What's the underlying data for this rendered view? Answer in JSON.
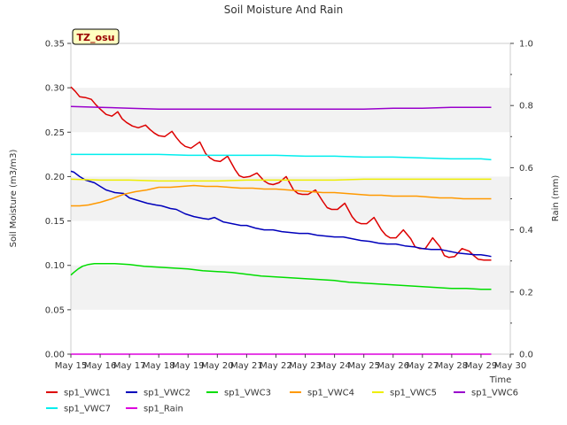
{
  "chart_data": {
    "type": "line",
    "title": "Soil Moisture And Rain",
    "xlabel": "Time",
    "ylabel": "Soil Moisture (m3/m3)",
    "y2label": "Rain (mm)",
    "badge": "TZ_osu",
    "x_ticks": [
      "May 15",
      "May 16",
      "May 17",
      "May 18",
      "May 19",
      "May 20",
      "May 21",
      "May 22",
      "May 23",
      "May 24",
      "May 25",
      "May 26",
      "May 27",
      "May 28",
      "May 29",
      "May 30"
    ],
    "xlim": [
      0,
      15
    ],
    "ylim": [
      0,
      0.35
    ],
    "y_ticks": [
      "0.00",
      "0.05",
      "0.10",
      "0.15",
      "0.20",
      "0.25",
      "0.30",
      "0.35"
    ],
    "y2lim": [
      0,
      1.0
    ],
    "y2_ticks": [
      "0.0",
      "0.2",
      "0.4",
      "0.6",
      "0.8",
      "1.0"
    ],
    "grid": "horizontal bands",
    "legend_position": "bottom",
    "x_unit": "days since May 15",
    "series": [
      {
        "name": "sp1_VWC1",
        "color": "#dd0000",
        "axis": "left",
        "x": [
          0.0,
          0.15,
          0.3,
          0.5,
          0.7,
          0.85,
          1.0,
          1.2,
          1.4,
          1.6,
          1.75,
          1.9,
          2.1,
          2.3,
          2.55,
          2.7,
          2.85,
          3.0,
          3.2,
          3.45,
          3.6,
          3.75,
          3.9,
          4.1,
          4.4,
          4.6,
          4.75,
          4.9,
          5.1,
          5.35,
          5.6,
          5.75,
          5.9,
          6.1,
          6.35,
          6.6,
          6.75,
          6.9,
          7.1,
          7.35,
          7.6,
          7.75,
          7.9,
          8.1,
          8.35,
          8.6,
          8.75,
          8.9,
          9.1,
          9.35,
          9.6,
          9.75,
          9.9,
          10.1,
          10.35,
          10.6,
          10.75,
          10.9,
          11.1,
          11.35,
          11.6,
          11.75,
          11.9,
          12.1,
          12.35,
          12.6,
          12.75,
          12.9,
          13.1,
          13.35,
          13.6,
          13.75,
          13.9,
          14.1,
          14.35
        ],
        "y": [
          0.301,
          0.296,
          0.29,
          0.289,
          0.287,
          0.281,
          0.276,
          0.27,
          0.268,
          0.273,
          0.265,
          0.261,
          0.257,
          0.255,
          0.258,
          0.253,
          0.249,
          0.246,
          0.245,
          0.251,
          0.244,
          0.238,
          0.234,
          0.232,
          0.239,
          0.226,
          0.221,
          0.218,
          0.217,
          0.223,
          0.208,
          0.201,
          0.199,
          0.2,
          0.204,
          0.195,
          0.192,
          0.191,
          0.193,
          0.2,
          0.185,
          0.181,
          0.18,
          0.18,
          0.185,
          0.172,
          0.165,
          0.163,
          0.163,
          0.17,
          0.155,
          0.149,
          0.147,
          0.147,
          0.154,
          0.14,
          0.134,
          0.131,
          0.131,
          0.14,
          0.13,
          0.121,
          0.119,
          0.119,
          0.131,
          0.121,
          0.111,
          0.109,
          0.11,
          0.119,
          0.116,
          0.111,
          0.107,
          0.106,
          0.106
        ]
      },
      {
        "name": "sp1_VWC2",
        "color": "#0000bb",
        "axis": "left",
        "x": [
          0.0,
          0.1,
          0.3,
          0.5,
          0.8,
          1.0,
          1.2,
          1.5,
          1.8,
          2.0,
          2.3,
          2.6,
          2.9,
          3.1,
          3.4,
          3.6,
          3.9,
          4.2,
          4.5,
          4.7,
          4.9,
          5.2,
          5.5,
          5.8,
          6.0,
          6.3,
          6.6,
          6.9,
          7.2,
          7.5,
          7.8,
          8.1,
          8.4,
          8.7,
          9.0,
          9.3,
          9.6,
          9.9,
          10.2,
          10.5,
          10.8,
          11.1,
          11.4,
          11.7,
          12.0,
          12.3,
          12.6,
          12.9,
          13.2,
          13.5,
          13.8,
          14.0,
          14.2,
          14.35
        ],
        "y": [
          0.206,
          0.205,
          0.2,
          0.196,
          0.193,
          0.189,
          0.185,
          0.182,
          0.181,
          0.176,
          0.173,
          0.17,
          0.168,
          0.167,
          0.164,
          0.163,
          0.158,
          0.155,
          0.153,
          0.152,
          0.154,
          0.149,
          0.147,
          0.145,
          0.145,
          0.142,
          0.14,
          0.14,
          0.138,
          0.137,
          0.136,
          0.136,
          0.134,
          0.133,
          0.132,
          0.132,
          0.13,
          0.128,
          0.127,
          0.125,
          0.124,
          0.124,
          0.122,
          0.121,
          0.119,
          0.118,
          0.118,
          0.116,
          0.114,
          0.113,
          0.112,
          0.112,
          0.111,
          0.11
        ]
      },
      {
        "name": "sp1_VWC3",
        "color": "#00dd00",
        "axis": "left",
        "x": [
          0.0,
          0.1,
          0.25,
          0.4,
          0.6,
          0.8,
          1.0,
          1.5,
          2.0,
          2.5,
          3.0,
          3.5,
          4.0,
          4.5,
          5.0,
          5.5,
          6.0,
          6.5,
          7.0,
          7.5,
          8.0,
          8.5,
          9.0,
          9.5,
          10.0,
          10.5,
          11.0,
          11.5,
          12.0,
          12.5,
          13.0,
          13.5,
          14.0,
          14.35
        ],
        "y": [
          0.089,
          0.092,
          0.096,
          0.099,
          0.101,
          0.102,
          0.102,
          0.102,
          0.101,
          0.099,
          0.098,
          0.097,
          0.096,
          0.094,
          0.093,
          0.092,
          0.09,
          0.088,
          0.087,
          0.086,
          0.085,
          0.084,
          0.083,
          0.081,
          0.08,
          0.079,
          0.078,
          0.077,
          0.076,
          0.075,
          0.074,
          0.074,
          0.073,
          0.073
        ]
      },
      {
        "name": "sp1_VWC4",
        "color": "#ff9900",
        "axis": "left",
        "x": [
          0.0,
          0.3,
          0.6,
          1.0,
          1.4,
          1.8,
          2.2,
          2.6,
          3.0,
          3.4,
          3.8,
          4.2,
          4.6,
          5.0,
          5.4,
          5.8,
          6.2,
          6.6,
          7.0,
          7.4,
          7.8,
          8.2,
          8.6,
          9.0,
          9.4,
          9.8,
          10.2,
          10.6,
          11.0,
          11.4,
          11.8,
          12.2,
          12.6,
          13.0,
          13.4,
          13.8,
          14.1,
          14.35
        ],
        "y": [
          0.167,
          0.167,
          0.168,
          0.171,
          0.175,
          0.18,
          0.183,
          0.185,
          0.188,
          0.188,
          0.189,
          0.19,
          0.189,
          0.189,
          0.188,
          0.187,
          0.187,
          0.186,
          0.186,
          0.185,
          0.184,
          0.183,
          0.182,
          0.182,
          0.181,
          0.18,
          0.179,
          0.179,
          0.178,
          0.178,
          0.178,
          0.177,
          0.176,
          0.176,
          0.175,
          0.175,
          0.175,
          0.175
        ]
      },
      {
        "name": "sp1_VWC5",
        "color": "#eeee00",
        "axis": "left",
        "x": [
          0.0,
          1.0,
          2.0,
          3.0,
          4.0,
          5.0,
          6.0,
          7.0,
          8.0,
          9.0,
          10.0,
          11.0,
          12.0,
          13.0,
          14.0,
          14.35
        ],
        "y": [
          0.197,
          0.196,
          0.196,
          0.195,
          0.195,
          0.195,
          0.196,
          0.196,
          0.196,
          0.196,
          0.197,
          0.197,
          0.197,
          0.197,
          0.197,
          0.197
        ]
      },
      {
        "name": "sp1_VWC6",
        "color": "#9900cc",
        "axis": "left",
        "x": [
          0.0,
          1.0,
          2.0,
          3.0,
          4.0,
          5.0,
          6.0,
          7.0,
          8.0,
          9.0,
          10.0,
          11.0,
          12.0,
          13.0,
          14.0,
          14.35
        ],
        "y": [
          0.279,
          0.278,
          0.277,
          0.276,
          0.276,
          0.276,
          0.276,
          0.276,
          0.276,
          0.276,
          0.276,
          0.277,
          0.277,
          0.278,
          0.278,
          0.278
        ]
      },
      {
        "name": "sp1_VWC7",
        "color": "#00eeee",
        "axis": "left",
        "x": [
          0.0,
          1.0,
          2.0,
          3.0,
          4.0,
          5.0,
          6.0,
          7.0,
          8.0,
          9.0,
          10.0,
          11.0,
          12.0,
          13.0,
          14.0,
          14.35
        ],
        "y": [
          0.225,
          0.225,
          0.225,
          0.225,
          0.224,
          0.224,
          0.224,
          0.224,
          0.223,
          0.223,
          0.222,
          0.222,
          0.221,
          0.22,
          0.22,
          0.219
        ]
      },
      {
        "name": "sp1_Rain",
        "color": "#dd00dd",
        "axis": "right",
        "x": [
          0.0,
          14.35
        ],
        "y": [
          0.0,
          0.0
        ]
      }
    ]
  }
}
